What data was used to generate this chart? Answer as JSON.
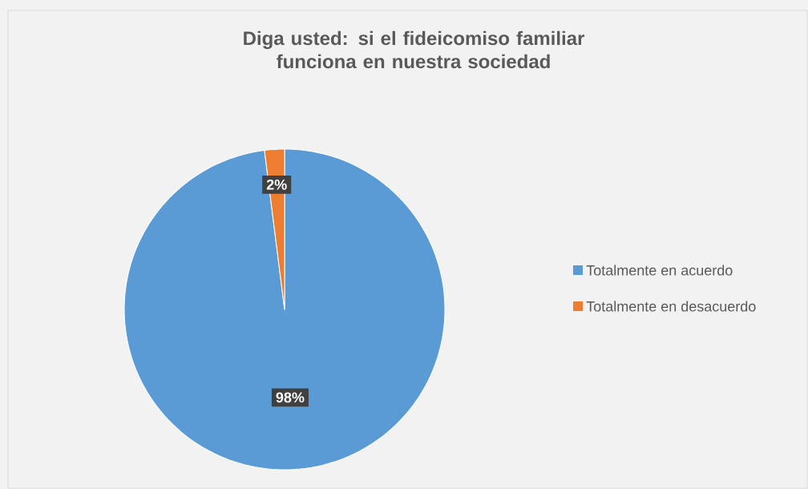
{
  "chart_data": {
    "type": "pie",
    "title": "Diga usted: si el fideicomiso familiar funciona en nuestra sociedad",
    "categories": [
      "Totalmente en acuerdo",
      "Totalmente en desacuerdo"
    ],
    "values": [
      98,
      2
    ],
    "value_labels": [
      "98%",
      "2%"
    ],
    "colors": [
      "#5b9bd5",
      "#ed7d31"
    ],
    "legend": "right"
  }
}
